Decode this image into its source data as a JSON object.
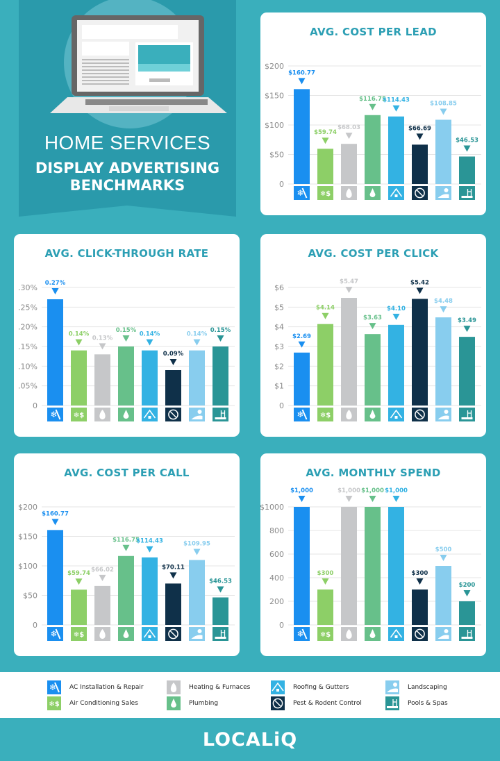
{
  "header": {
    "title_line1": "HOME SERVICES",
    "title_line2": "DISPLAY ADVERTISING",
    "title_line3": "BENCHMARKS"
  },
  "categories": [
    {
      "label": "AC Installation & Repair",
      "icon": "snowflake-wrench",
      "color": "#1a8ff0"
    },
    {
      "label": "Air Conditioning Sales",
      "icon": "snowflake-dollar",
      "color": "#8dcf67"
    },
    {
      "label": "Heating & Furnaces",
      "icon": "flame",
      "color": "#c6c7c9"
    },
    {
      "label": "Plumbing",
      "icon": "water-drop",
      "color": "#67c08a"
    },
    {
      "label": "Roofing & Gutters",
      "icon": "house-roof",
      "color": "#33b2e3"
    },
    {
      "label": "Pest & Rodent Control",
      "icon": "no-pest",
      "color": "#0f3049"
    },
    {
      "label": "Landscaping",
      "icon": "tree-landscape",
      "color": "#88cdee"
    },
    {
      "label": "Pools & Spas",
      "icon": "pool-ladder",
      "color": "#2a9596"
    }
  ],
  "chart_data": [
    {
      "type": "bar",
      "title": "AVG. COST PER LEAD",
      "categories": [
        "AC Installation & Repair",
        "Air Conditioning Sales",
        "Heating & Furnaces",
        "Plumbing",
        "Roofing & Gutters",
        "Pest & Rodent Control",
        "Landscaping",
        "Pools & Spas"
      ],
      "values": [
        160.77,
        59.74,
        68.03,
        116.75,
        114.43,
        66.69,
        108.85,
        46.53
      ],
      "data_labels": [
        "$160.77",
        "$59.74",
        "$68.03",
        "$116.75",
        "$114.43",
        "$66.69",
        "$108.85",
        "$46.53"
      ],
      "ylim": [
        0,
        200
      ],
      "ytick_values": [
        0,
        50,
        100,
        150,
        200
      ],
      "ytick_labels": [
        "0",
        "$50",
        "$100",
        "$150",
        "$200"
      ],
      "grid": true
    },
    {
      "type": "bar",
      "title": "AVG. CLICK-THROUGH RATE",
      "categories": [
        "AC Installation & Repair",
        "Air Conditioning Sales",
        "Heating & Furnaces",
        "Plumbing",
        "Roofing & Gutters",
        "Pest & Rodent Control",
        "Landscaping",
        "Pools & Spas"
      ],
      "values": [
        0.27,
        0.14,
        0.13,
        0.15,
        0.14,
        0.09,
        0.14,
        0.15
      ],
      "data_labels": [
        "0.27%",
        "0.14%",
        "0.13%",
        "0.15%",
        "0.14%",
        "0.09%",
        "0.14%",
        "0.15%"
      ],
      "ylim": [
        0,
        0.3
      ],
      "ytick_values": [
        0,
        0.05,
        0.1,
        0.15,
        0.2,
        0.25,
        0.3
      ],
      "ytick_labels": [
        "0",
        ".05%",
        ".10%",
        ".15%",
        ".20%",
        ".25%",
        ".30%"
      ],
      "grid": true
    },
    {
      "type": "bar",
      "title": "AVG. COST PER CLICK",
      "categories": [
        "AC Installation & Repair",
        "Air Conditioning Sales",
        "Heating & Furnaces",
        "Plumbing",
        "Roofing & Gutters",
        "Pest & Rodent Control",
        "Landscaping",
        "Pools & Spas"
      ],
      "values": [
        2.69,
        4.14,
        5.47,
        3.63,
        4.1,
        5.42,
        4.48,
        3.49
      ],
      "data_labels": [
        "$2.69",
        "$4.14",
        "$5.47",
        "$3.63",
        "$4.10",
        "$5.42",
        "$4.48",
        "$3.49"
      ],
      "ylim": [
        0,
        6
      ],
      "ytick_values": [
        0,
        1,
        2,
        3,
        4,
        5,
        6
      ],
      "ytick_labels": [
        "0",
        "$1",
        "$2",
        "$3",
        "$4",
        "$5",
        "$6"
      ],
      "grid": true
    },
    {
      "type": "bar",
      "title": "AVG. COST PER CALL",
      "categories": [
        "AC Installation & Repair",
        "Air Conditioning Sales",
        "Heating & Furnaces",
        "Plumbing",
        "Roofing & Gutters",
        "Pest & Rodent Control",
        "Landscaping",
        "Pools & Spas"
      ],
      "values": [
        160.77,
        59.74,
        66.02,
        116.75,
        114.43,
        70.11,
        109.95,
        46.53
      ],
      "data_labels": [
        "$160.77",
        "$59.74",
        "$66.02",
        "$116.75",
        "$114.43",
        "$70.11",
        "$109.95",
        "$46.53"
      ],
      "ylim": [
        0,
        200
      ],
      "ytick_values": [
        0,
        50,
        100,
        150,
        200
      ],
      "ytick_labels": [
        "0",
        "$50",
        "$100",
        "$150",
        "$200"
      ],
      "grid": true
    },
    {
      "type": "bar",
      "title": "AVG. MONTHLY SPEND",
      "categories": [
        "AC Installation & Repair",
        "Air Conditioning Sales",
        "Heating & Furnaces",
        "Plumbing",
        "Roofing & Gutters",
        "Pest & Rodent Control",
        "Landscaping",
        "Pools & Spas"
      ],
      "values": [
        1000,
        300,
        1000,
        1000,
        1000,
        300,
        500,
        200
      ],
      "data_labels": [
        "$1,000",
        "$300",
        "$1,000",
        "$1,000",
        "$1,000",
        "$300",
        "$500",
        "$200"
      ],
      "ylim": [
        0,
        1000
      ],
      "ytick_values": [
        0,
        200,
        400,
        600,
        800,
        1000
      ],
      "ytick_labels": [
        "0",
        "200",
        "400",
        "600",
        "800",
        "$1000"
      ],
      "grid": true
    }
  ],
  "footer": {
    "logo": "LOCALiQ"
  }
}
